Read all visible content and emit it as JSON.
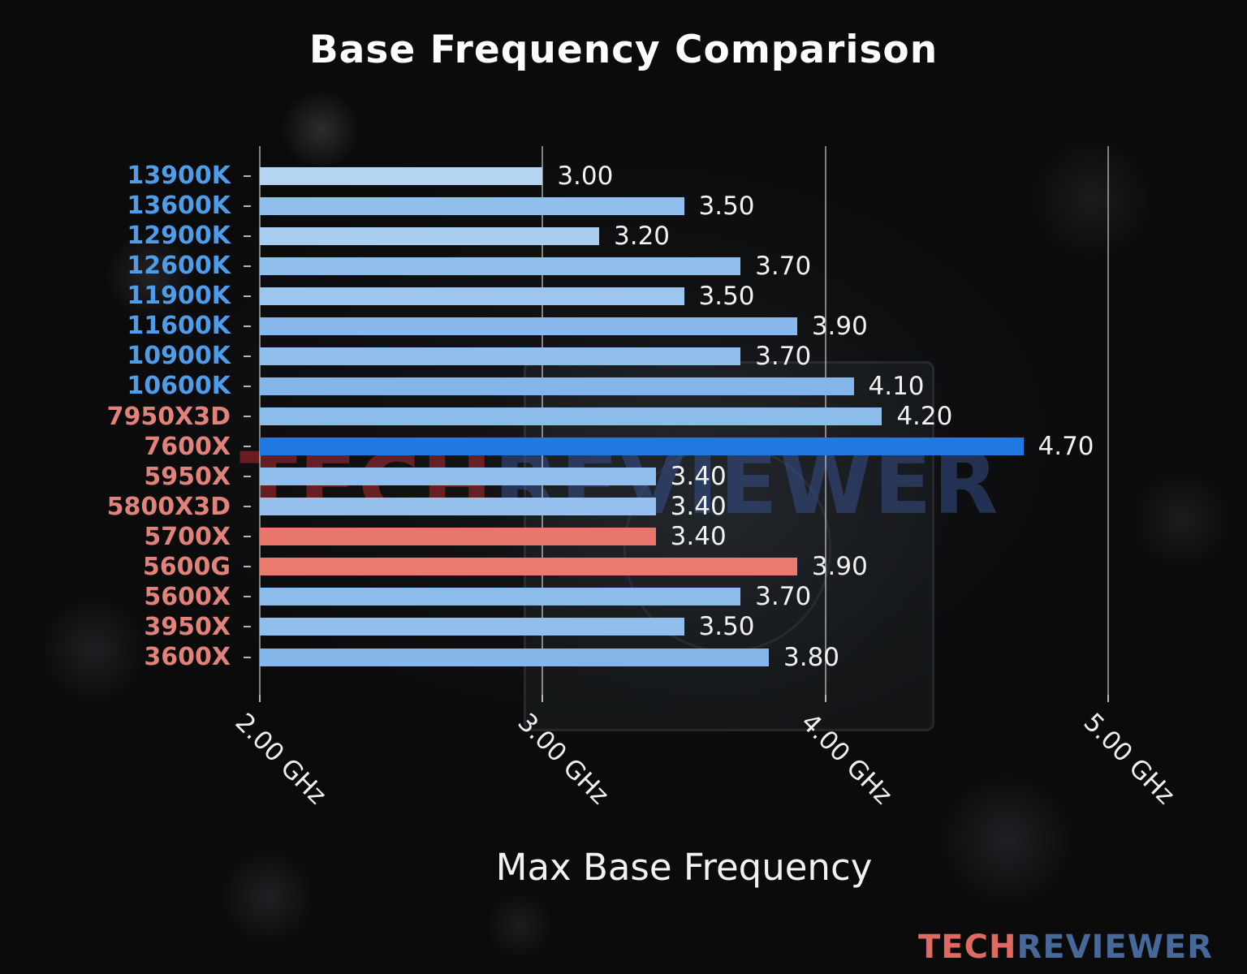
{
  "watermark": {
    "part1": "TECH",
    "part2": "REVIEWER"
  },
  "logo": {
    "part1": "TECH",
    "part2": "REVIEWER"
  },
  "chart_data": {
    "type": "bar",
    "orientation": "horizontal",
    "title": "Base Frequency Comparison",
    "xlabel": "Max Base Frequency",
    "xlim": [
      2.0,
      5.0
    ],
    "grid": true,
    "xticks": [
      {
        "value": 2.0,
        "label": "2.00 GHz"
      },
      {
        "value": 3.0,
        "label": "3.00 GHz"
      },
      {
        "value": 4.0,
        "label": "4.00 GHz"
      },
      {
        "value": 5.0,
        "label": "5.00 GHz"
      }
    ],
    "bars": [
      {
        "category": "13900K",
        "value": 3.0,
        "value_label": "3.00",
        "bar_color": "#b5d4f1",
        "category_color": "#4f9ce8"
      },
      {
        "category": "13600K",
        "value": 3.5,
        "value_label": "3.50",
        "bar_color": "#90bfee",
        "category_color": "#4f9ce8"
      },
      {
        "category": "12900K",
        "value": 3.2,
        "value_label": "3.20",
        "bar_color": "#a9cdf0",
        "category_color": "#4f9ce8"
      },
      {
        "category": "12600K",
        "value": 3.7,
        "value_label": "3.70",
        "bar_color": "#90bfee",
        "category_color": "#4f9ce8"
      },
      {
        "category": "11900K",
        "value": 3.5,
        "value_label": "3.50",
        "bar_color": "#9cc5ef",
        "category_color": "#4f9ce8"
      },
      {
        "category": "11600K",
        "value": 3.9,
        "value_label": "3.90",
        "bar_color": "#88b9ec",
        "category_color": "#4f9ce8"
      },
      {
        "category": "10900K",
        "value": 3.7,
        "value_label": "3.70",
        "bar_color": "#90bfee",
        "category_color": "#4f9ce8"
      },
      {
        "category": "10600K",
        "value": 4.1,
        "value_label": "4.10",
        "bar_color": "#84b5ea",
        "category_color": "#4f9ce8"
      },
      {
        "category": "7950X3D",
        "value": 4.2,
        "value_label": "4.20",
        "bar_color": "#8cbcec",
        "category_color": "#e2837b"
      },
      {
        "category": "7600X",
        "value": 4.7,
        "value_label": "4.70",
        "bar_color": "#2079e0",
        "category_color": "#e2837b"
      },
      {
        "category": "5950X",
        "value": 3.4,
        "value_label": "3.40",
        "bar_color": "#90bfee",
        "category_color": "#e2837b"
      },
      {
        "category": "5800X3D",
        "value": 3.4,
        "value_label": "3.40",
        "bar_color": "#96c1ee",
        "category_color": "#e2837b"
      },
      {
        "category": "5700X",
        "value": 3.4,
        "value_label": "3.40",
        "bar_color": "#e8766c",
        "category_color": "#e2837b"
      },
      {
        "category": "5600G",
        "value": 3.9,
        "value_label": "3.90",
        "bar_color": "#ea7a70",
        "category_color": "#e2837b"
      },
      {
        "category": "5600X",
        "value": 3.7,
        "value_label": "3.70",
        "bar_color": "#8cbcec",
        "category_color": "#e2837b"
      },
      {
        "category": "3950X",
        "value": 3.5,
        "value_label": "3.50",
        "bar_color": "#90bfee",
        "category_color": "#e2837b"
      },
      {
        "category": "3600X",
        "value": 3.8,
        "value_label": "3.80",
        "bar_color": "#86b7eb",
        "category_color": "#e2837b"
      }
    ]
  }
}
